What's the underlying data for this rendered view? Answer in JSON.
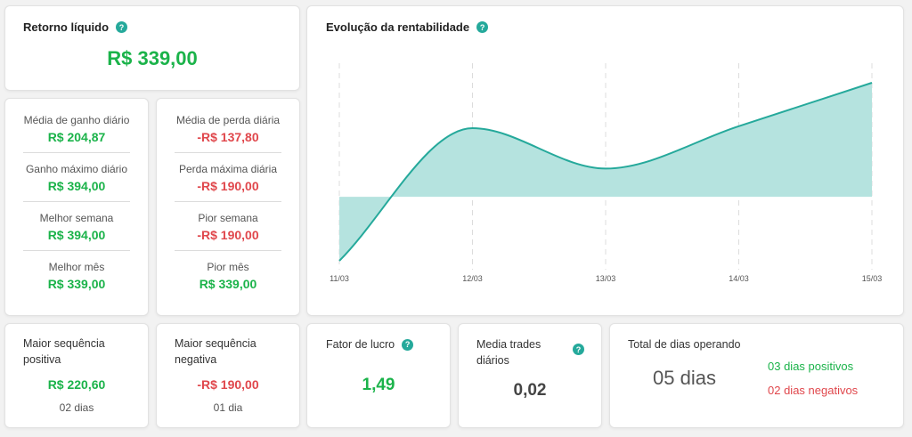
{
  "net_return": {
    "title": "Retorno líquido",
    "value": "R$ 339,00"
  },
  "gains": [
    {
      "label": "Média de ganho diário",
      "value": "R$ 204,87"
    },
    {
      "label": "Ganho máximo diário",
      "value": "R$ 394,00"
    },
    {
      "label": "Melhor semana",
      "value": "R$ 394,00"
    },
    {
      "label": "Melhor mês",
      "value": "R$ 339,00"
    }
  ],
  "losses": [
    {
      "label": "Média de perda diária",
      "value": "-R$ 137,80"
    },
    {
      "label": "Perda máxima diária",
      "value": "-R$ 190,00"
    },
    {
      "label": "Pior semana",
      "value": "-R$ 190,00"
    },
    {
      "label": "Pior mês",
      "value": "R$ 339,00"
    }
  ],
  "chart": {
    "title": "Evolução da rentabilidade"
  },
  "chart_data": {
    "type": "area",
    "title": "Evolução da rentabilidade",
    "categories": [
      "11/03",
      "12/03",
      "13/03",
      "14/03",
      "15/03"
    ],
    "values": [
      -190,
      204,
      84,
      210,
      339
    ],
    "baseline": 0,
    "ylim": [
      -190,
      339
    ],
    "grid": "vertical dashed",
    "colors": {
      "area": "#b5e3df",
      "line": "#25a99b"
    }
  },
  "max_pos_seq": {
    "title": "Maior sequência positiva",
    "value": "R$ 220,60",
    "sub": "02 dias"
  },
  "max_neg_seq": {
    "title": "Maior sequência negativa",
    "value": "-R$ 190,00",
    "sub": "01 dia"
  },
  "profit_factor": {
    "title": "Fator de lucro",
    "value": "1,49"
  },
  "avg_trades": {
    "title": "Media trades diários",
    "value": "0,02"
  },
  "days": {
    "title": "Total de dias operando",
    "total": "05 dias",
    "positive": "03 dias positivos",
    "negative": "02 dias negativos"
  },
  "help_glyph": "?",
  "colors": {
    "positive": "#1bb34a",
    "negative": "#e0474c",
    "accent": "#25a99b"
  },
  "icons": {
    "help": "question-circle-icon"
  }
}
